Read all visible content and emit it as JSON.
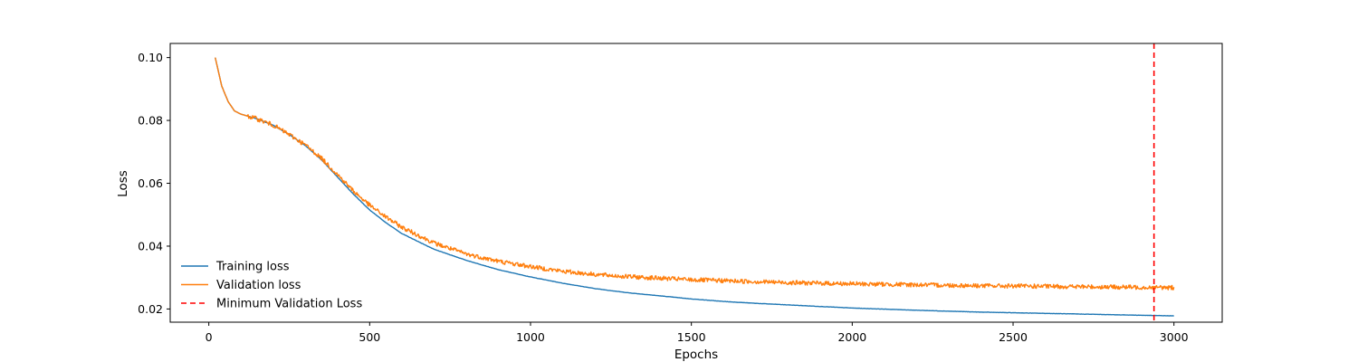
{
  "chart_data": {
    "type": "line",
    "title": "",
    "xlabel": "Epochs",
    "ylabel": "Loss",
    "xlim": [
      -120,
      3150
    ],
    "ylim": [
      0.0158,
      0.1045
    ],
    "xticks": [
      0,
      500,
      1000,
      1500,
      2000,
      2500,
      3000
    ],
    "yticks": [
      0.02,
      0.04,
      0.06,
      0.08,
      0.1
    ],
    "ytick_labels": [
      "0.02",
      "0.04",
      "0.06",
      "0.08",
      "0.10"
    ],
    "grid": false,
    "legend_position": "lower-left",
    "series": [
      {
        "name": "Training loss",
        "color": "#1f77b4",
        "style": "solid",
        "x": [
          20,
          40,
          60,
          80,
          100,
          150,
          200,
          250,
          300,
          350,
          400,
          450,
          500,
          550,
          600,
          700,
          800,
          900,
          1000,
          1100,
          1200,
          1300,
          1400,
          1500,
          1600,
          1700,
          1800,
          1900,
          2000,
          2200,
          2400,
          2600,
          2800,
          3000
        ],
        "y": [
          0.1,
          0.091,
          0.086,
          0.083,
          0.082,
          0.0805,
          0.0785,
          0.0755,
          0.072,
          0.0675,
          0.062,
          0.0565,
          0.0515,
          0.0475,
          0.044,
          0.039,
          0.0355,
          0.0325,
          0.0302,
          0.0282,
          0.0265,
          0.0252,
          0.0242,
          0.0232,
          0.0224,
          0.0218,
          0.0213,
          0.0208,
          0.0203,
          0.0196,
          0.019,
          0.0186,
          0.0182,
          0.0178
        ]
      },
      {
        "name": "Validation loss",
        "color": "#ff7f0e",
        "style": "solid",
        "x": [
          20,
          40,
          60,
          80,
          100,
          150,
          200,
          250,
          300,
          350,
          400,
          450,
          500,
          550,
          600,
          700,
          800,
          900,
          1000,
          1100,
          1200,
          1300,
          1400,
          1500,
          1600,
          1700,
          1800,
          1900,
          2000,
          2200,
          2400,
          2600,
          2800,
          3000
        ],
        "y": [
          0.1,
          0.091,
          0.086,
          0.083,
          0.082,
          0.0805,
          0.0785,
          0.0755,
          0.0722,
          0.068,
          0.0628,
          0.0575,
          0.053,
          0.0493,
          0.046,
          0.041,
          0.0375,
          0.0352,
          0.0335,
          0.032,
          0.031,
          0.0303,
          0.0298,
          0.0293,
          0.029,
          0.0287,
          0.0284,
          0.0282,
          0.028,
          0.0277,
          0.0274,
          0.0272,
          0.027,
          0.0268
        ]
      },
      {
        "name": "Minimum Validation Loss",
        "color": "#ff0000",
        "style": "dashed",
        "type": "vline",
        "x": 2938
      }
    ]
  }
}
